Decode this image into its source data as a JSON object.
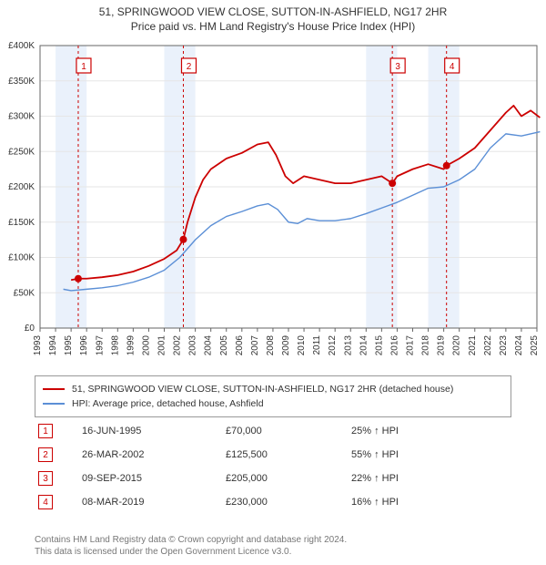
{
  "title_line1": "51, SPRINGWOOD VIEW CLOSE, SUTTON-IN-ASHFIELD, NG17 2HR",
  "title_line2": "Price paid vs. HM Land Registry's House Price Index (HPI)",
  "chart": {
    "type": "line",
    "background_color": "#ffffff",
    "grid_color": "#e6e6e6",
    "axis_color": "#666666",
    "x_years": [
      1993,
      1994,
      1995,
      1996,
      1997,
      1998,
      1999,
      2000,
      2001,
      2002,
      2003,
      2004,
      2005,
      2006,
      2007,
      2008,
      2009,
      2010,
      2011,
      2012,
      2013,
      2014,
      2015,
      2016,
      2017,
      2018,
      2019,
      2020,
      2021,
      2022,
      2023,
      2024,
      2025
    ],
    "ylim": [
      0,
      400000
    ],
    "ytick_step": 50000,
    "ytick_labels": [
      "£0",
      "£50K",
      "£100K",
      "£150K",
      "£200K",
      "£250K",
      "£300K",
      "£350K",
      "£400K"
    ],
    "band_color": "#eaf1fb",
    "bands_years": [
      [
        1994,
        1996
      ],
      [
        2001,
        2003
      ],
      [
        2014,
        2016
      ],
      [
        2018,
        2020
      ]
    ],
    "event_line_color": "#cc0000",
    "event_line_dash": "3,3",
    "event_years": [
      1995.46,
      2002.23,
      2015.69,
      2019.18
    ],
    "series": [
      {
        "name": "property",
        "color": "#cc0000",
        "width": 1.8,
        "points": [
          [
            1995.0,
            68000
          ],
          [
            1995.46,
            70000
          ],
          [
            1996.0,
            70000
          ],
          [
            1997.0,
            72000
          ],
          [
            1998.0,
            75000
          ],
          [
            1999.0,
            80000
          ],
          [
            2000.0,
            88000
          ],
          [
            2001.0,
            98000
          ],
          [
            2001.8,
            110000
          ],
          [
            2002.23,
            125500
          ],
          [
            2002.5,
            150000
          ],
          [
            2003.0,
            185000
          ],
          [
            2003.5,
            210000
          ],
          [
            2004.0,
            225000
          ],
          [
            2005.0,
            240000
          ],
          [
            2006.0,
            248000
          ],
          [
            2007.0,
            260000
          ],
          [
            2007.7,
            263000
          ],
          [
            2008.2,
            245000
          ],
          [
            2008.8,
            215000
          ],
          [
            2009.3,
            205000
          ],
          [
            2010.0,
            215000
          ],
          [
            2011.0,
            210000
          ],
          [
            2012.0,
            205000
          ],
          [
            2013.0,
            205000
          ],
          [
            2014.0,
            210000
          ],
          [
            2015.0,
            215000
          ],
          [
            2015.69,
            205000
          ],
          [
            2016.0,
            215000
          ],
          [
            2017.0,
            225000
          ],
          [
            2018.0,
            232000
          ],
          [
            2019.0,
            225000
          ],
          [
            2019.18,
            230000
          ],
          [
            2020.0,
            240000
          ],
          [
            2021.0,
            255000
          ],
          [
            2022.0,
            280000
          ],
          [
            2023.0,
            305000
          ],
          [
            2023.5,
            315000
          ],
          [
            2024.0,
            300000
          ],
          [
            2024.6,
            308000
          ],
          [
            2025.2,
            298000
          ]
        ],
        "markers": [
          {
            "x": 1995.46,
            "y": 70000
          },
          {
            "x": 2002.23,
            "y": 125500
          },
          {
            "x": 2015.69,
            "y": 205000
          },
          {
            "x": 2019.18,
            "y": 230000
          }
        ],
        "marker_color": "#cc0000",
        "marker_radius": 4
      },
      {
        "name": "hpi",
        "color": "#5b8fd6",
        "width": 1.4,
        "points": [
          [
            1994.5,
            55000
          ],
          [
            1995.0,
            53000
          ],
          [
            1996.0,
            55000
          ],
          [
            1997.0,
            57000
          ],
          [
            1998.0,
            60000
          ],
          [
            1999.0,
            65000
          ],
          [
            2000.0,
            72000
          ],
          [
            2001.0,
            82000
          ],
          [
            2002.0,
            100000
          ],
          [
            2003.0,
            125000
          ],
          [
            2004.0,
            145000
          ],
          [
            2005.0,
            158000
          ],
          [
            2006.0,
            165000
          ],
          [
            2007.0,
            173000
          ],
          [
            2007.7,
            176000
          ],
          [
            2008.3,
            168000
          ],
          [
            2009.0,
            150000
          ],
          [
            2009.6,
            148000
          ],
          [
            2010.2,
            155000
          ],
          [
            2011.0,
            152000
          ],
          [
            2012.0,
            152000
          ],
          [
            2013.0,
            155000
          ],
          [
            2014.0,
            162000
          ],
          [
            2015.0,
            170000
          ],
          [
            2016.0,
            178000
          ],
          [
            2017.0,
            188000
          ],
          [
            2018.0,
            198000
          ],
          [
            2019.0,
            200000
          ],
          [
            2020.0,
            210000
          ],
          [
            2021.0,
            225000
          ],
          [
            2022.0,
            255000
          ],
          [
            2023.0,
            275000
          ],
          [
            2024.0,
            272000
          ],
          [
            2025.2,
            278000
          ]
        ]
      }
    ]
  },
  "legend": {
    "items": [
      {
        "color": "#cc0000",
        "label": "51, SPRINGWOOD VIEW CLOSE, SUTTON-IN-ASHFIELD, NG17 2HR (detached house)"
      },
      {
        "color": "#5b8fd6",
        "label": "HPI: Average price, detached house, Ashfield"
      }
    ]
  },
  "events": [
    {
      "n": "1",
      "date": "16-JUN-1995",
      "price": "£70,000",
      "delta": "25% ↑ HPI"
    },
    {
      "n": "2",
      "date": "26-MAR-2002",
      "price": "£125,500",
      "delta": "55% ↑ HPI"
    },
    {
      "n": "3",
      "date": "09-SEP-2015",
      "price": "£205,000",
      "delta": "22% ↑ HPI"
    },
    {
      "n": "4",
      "date": "08-MAR-2019",
      "price": "£230,000",
      "delta": "16% ↑ HPI"
    }
  ],
  "footer_line1": "Contains HM Land Registry data © Crown copyright and database right 2024.",
  "footer_line2": "This data is licensed under the Open Government Licence v3.0.",
  "badge_border_color": "#cc0000",
  "badge_text_color": "#cc0000"
}
